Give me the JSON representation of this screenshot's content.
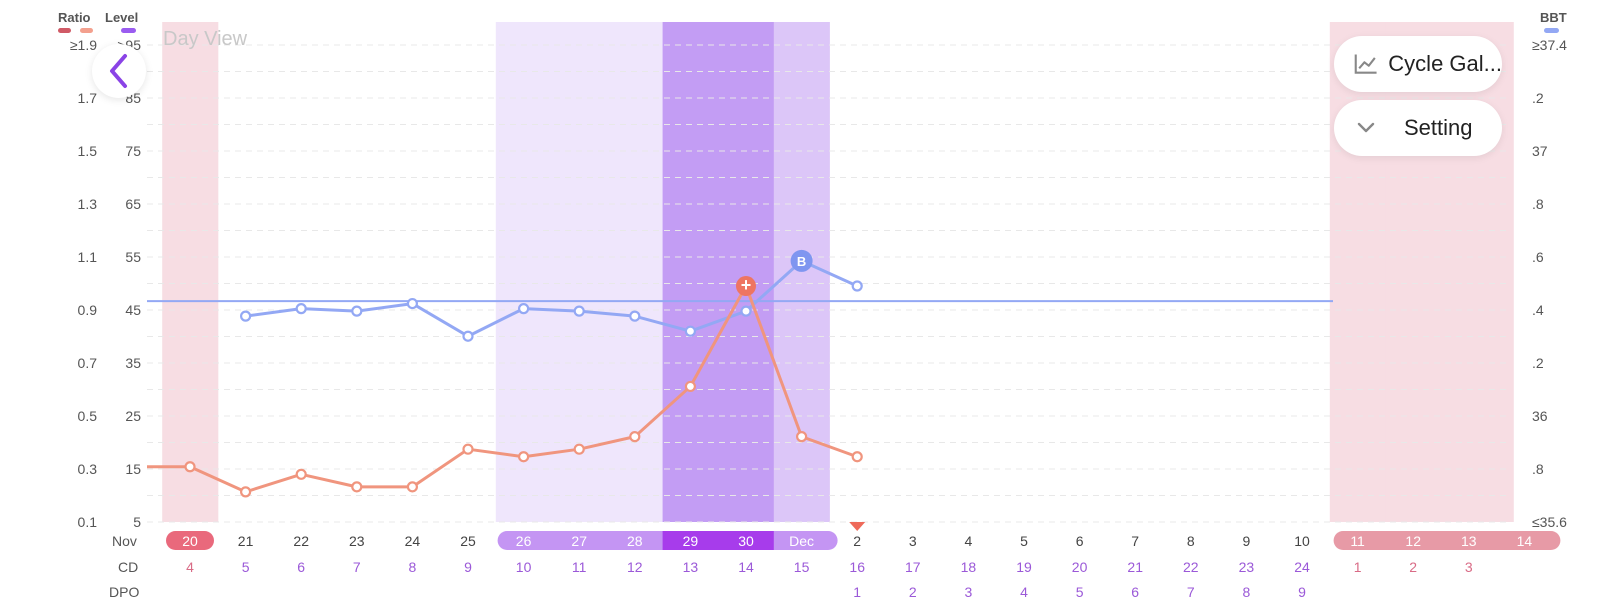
{
  "view_title": "Day View",
  "axes": {
    "ratio_header": "Ratio",
    "level_header": "Level",
    "bbt_header": "BBT",
    "ratio_ticks": [
      "≥1.9",
      "1.7",
      "1.5",
      "1.3",
      "1.1",
      "0.9",
      "0.7",
      "0.5",
      "0.3",
      "0.1"
    ],
    "level_ticks": [
      ">95",
      "85",
      "75",
      "65",
      "55",
      "45",
      "35",
      "25",
      "15",
      "5"
    ],
    "bbt_ticks": [
      "≥37.4",
      ".2",
      "37",
      ".8",
      ".6",
      ".4",
      ".2",
      "36",
      ".8",
      "≤35.6"
    ]
  },
  "colors": {
    "ratio_dark": "#d05a66",
    "ratio_light": "#f3a08e",
    "level": "#9a5cf0",
    "bbt": "#93a8f4",
    "lh_line": "#f0957e",
    "period_band": "#f7dde3",
    "fertile_light": "#efe6fc",
    "fertile_mid": "#dcc6f8",
    "fertile_peak": "#c39df4"
  },
  "row_labels": {
    "month": "Nov",
    "cd": "CD",
    "dpo": "DPO"
  },
  "days": [
    {
      "date": "20",
      "cd": "4",
      "dpo": "",
      "type": "period"
    },
    {
      "date": "21",
      "cd": "5",
      "dpo": "",
      "type": "normal"
    },
    {
      "date": "22",
      "cd": "6",
      "dpo": "",
      "type": "normal"
    },
    {
      "date": "23",
      "cd": "7",
      "dpo": "",
      "type": "normal"
    },
    {
      "date": "24",
      "cd": "8",
      "dpo": "",
      "type": "normal"
    },
    {
      "date": "25",
      "cd": "9",
      "dpo": "",
      "type": "normal"
    },
    {
      "date": "26",
      "cd": "10",
      "dpo": "",
      "type": "fertile"
    },
    {
      "date": "27",
      "cd": "11",
      "dpo": "",
      "type": "fertile"
    },
    {
      "date": "28",
      "cd": "12",
      "dpo": "",
      "type": "fertile"
    },
    {
      "date": "29",
      "cd": "13",
      "dpo": "",
      "type": "peak"
    },
    {
      "date": "30",
      "cd": "14",
      "dpo": "",
      "type": "peak"
    },
    {
      "date": "Dec",
      "cd": "15",
      "dpo": "",
      "type": "fertile"
    },
    {
      "date": "2",
      "cd": "16",
      "dpo": "1",
      "type": "normal"
    },
    {
      "date": "3",
      "cd": "17",
      "dpo": "2",
      "type": "normal"
    },
    {
      "date": "4",
      "cd": "18",
      "dpo": "3",
      "type": "normal"
    },
    {
      "date": "5",
      "cd": "19",
      "dpo": "4",
      "type": "normal"
    },
    {
      "date": "6",
      "cd": "20",
      "dpo": "5",
      "type": "normal"
    },
    {
      "date": "7",
      "cd": "21",
      "dpo": "6",
      "type": "normal"
    },
    {
      "date": "8",
      "cd": "22",
      "dpo": "7",
      "type": "normal"
    },
    {
      "date": "9",
      "cd": "23",
      "dpo": "8",
      "type": "normal"
    },
    {
      "date": "10",
      "cd": "24",
      "dpo": "9",
      "type": "normal"
    },
    {
      "date": "11",
      "cd": "1",
      "dpo": "",
      "type": "predicted-period"
    },
    {
      "date": "12",
      "cd": "2",
      "dpo": "",
      "type": "predicted-period"
    },
    {
      "date": "13",
      "cd": "3",
      "dpo": "",
      "type": "predicted-period"
    },
    {
      "date": "14",
      "cd": "",
      "dpo": "",
      "type": "predicted-period"
    }
  ],
  "chart_data": {
    "type": "line",
    "x": [
      "20",
      "21",
      "22",
      "23",
      "24",
      "25",
      "26",
      "27",
      "28",
      "29",
      "30",
      "Dec",
      "2"
    ],
    "series": [
      {
        "values": [
          null,
          46,
          47.5,
          47,
          48.5,
          42,
          47.5,
          47,
          46,
          43,
          47,
          57,
          52
        ]
      },
      {
        "values": [
          16,
          11,
          14.5,
          12,
          12,
          19.5,
          18,
          19.5,
          22,
          32,
          52,
          22,
          18
        ]
      }
    ],
    "markers": [
      {
        "label": "B",
        "series": 0,
        "x": "Dec"
      },
      {
        "label": "+",
        "series": 1,
        "x": "30"
      }
    ],
    "ylim": [
      5,
      100
    ],
    "coverline": 49,
    "today": "2"
  },
  "buttons": {
    "cycle_gallery": "Cycle Gal...",
    "setting": "Setting"
  },
  "icons": {
    "back": "chevron-left-icon",
    "chart": "line-chart-icon",
    "setting": "chevron-down-icon"
  }
}
